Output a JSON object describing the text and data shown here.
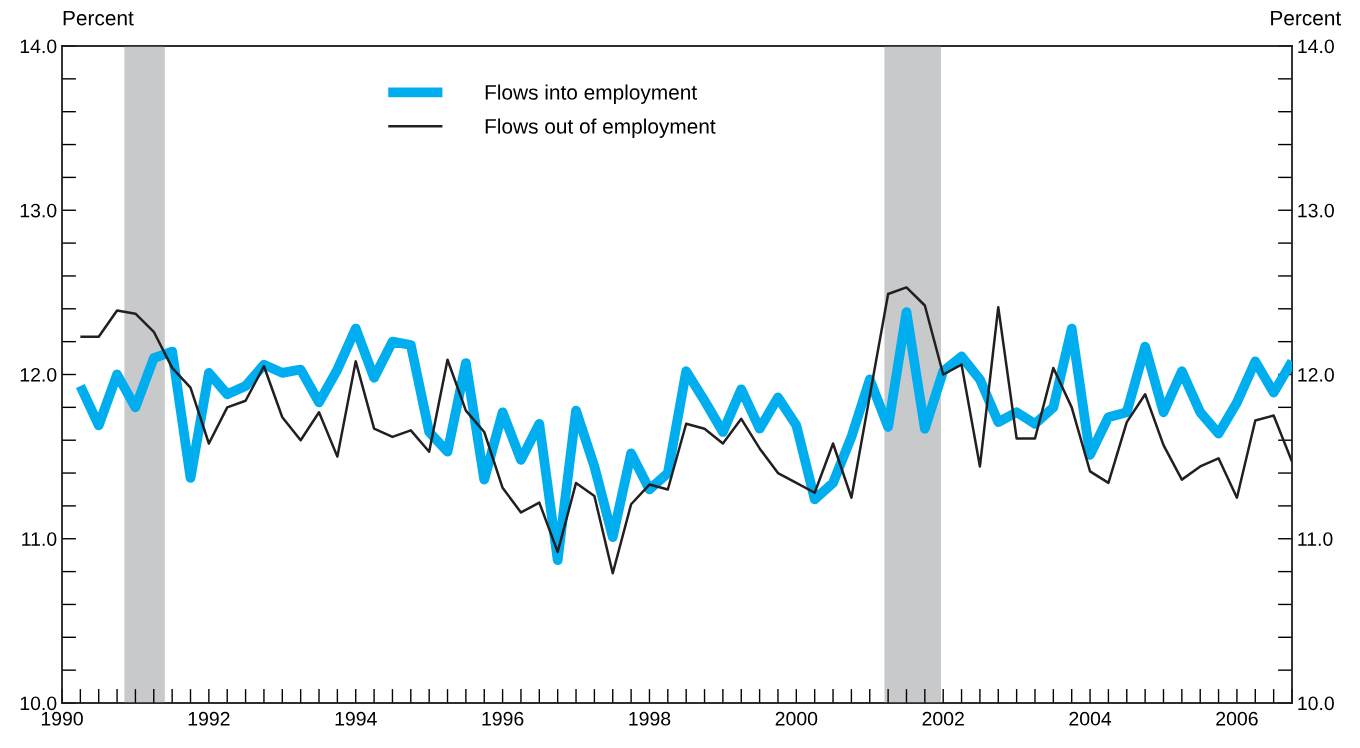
{
  "chart_data": {
    "type": "line",
    "ylabel": "Percent",
    "y2label": "Percent",
    "x": [
      1990.25,
      1990.5,
      1990.75,
      1991,
      1991.25,
      1991.5,
      1991.75,
      1992,
      1992.25,
      1992.5,
      1992.75,
      1993,
      1993.25,
      1993.5,
      1993.75,
      1994,
      1994.25,
      1994.5,
      1994.75,
      1995,
      1995.25,
      1995.5,
      1995.75,
      1996,
      1996.25,
      1996.5,
      1996.75,
      1997,
      1997.25,
      1997.5,
      1997.75,
      1998,
      1998.25,
      1998.5,
      1998.75,
      1999,
      1999.25,
      1999.5,
      1999.75,
      2000,
      2000.25,
      2000.5,
      2000.75,
      2001,
      2001.25,
      2001.5,
      2001.75,
      2002,
      2002.25,
      2002.5,
      2002.75,
      2003,
      2003.25,
      2003.5,
      2003.75,
      2004,
      2004.25,
      2004.5,
      2004.75,
      2005,
      2005.25,
      2005.5,
      2005.75,
      2006,
      2006.25,
      2006.5,
      2006.75
    ],
    "series": [
      {
        "name": "Flows into employment",
        "color": "#00aeef",
        "values": [
          11.93,
          11.69,
          12.0,
          11.8,
          12.1,
          12.14,
          11.37,
          12.01,
          11.88,
          11.93,
          12.06,
          12.01,
          12.03,
          11.83,
          12.03,
          12.28,
          11.98,
          12.2,
          12.18,
          11.65,
          11.53,
          12.07,
          11.36,
          11.77,
          11.48,
          11.7,
          10.87,
          11.78,
          11.44,
          11.01,
          11.52,
          11.3,
          11.4,
          12.02,
          11.84,
          11.65,
          11.91,
          11.67,
          11.86,
          11.69,
          11.24,
          11.34,
          11.62,
          11.97,
          11.68,
          12.38,
          11.67,
          12.02,
          12.11,
          11.97,
          11.71,
          11.77,
          11.7,
          11.8,
          12.28,
          11.51,
          11.74,
          11.77,
          12.17,
          11.77,
          12.02,
          11.77,
          11.64,
          11.83,
          12.08,
          11.89,
          12.08
        ]
      },
      {
        "name": "Flows out of employment",
        "color": "#231f20",
        "values": [
          12.23,
          12.23,
          12.39,
          12.37,
          12.26,
          12.04,
          11.92,
          11.58,
          11.8,
          11.84,
          12.05,
          11.74,
          11.6,
          11.77,
          11.5,
          12.08,
          11.67,
          11.62,
          11.66,
          11.53,
          12.09,
          11.78,
          11.65,
          11.31,
          11.16,
          11.22,
          10.92,
          11.34,
          11.26,
          10.79,
          11.21,
          11.33,
          11.3,
          11.7,
          11.67,
          11.58,
          11.73,
          11.55,
          11.4,
          11.34,
          11.28,
          11.58,
          11.25,
          11.87,
          12.49,
          12.53,
          12.42,
          12.0,
          12.06,
          11.44,
          12.41,
          11.61,
          11.61,
          12.04,
          11.8,
          11.41,
          11.34,
          11.71,
          11.88,
          11.57,
          11.36,
          11.44,
          11.49,
          11.25,
          11.72,
          11.75,
          11.47
        ]
      }
    ],
    "xlim": [
      1990,
      2006.75
    ],
    "xticks": [
      1990,
      1992,
      1994,
      1996,
      1998,
      2000,
      2002,
      2004,
      2006
    ],
    "ylim": [
      10,
      14
    ],
    "yticks": [
      {
        "value": 10,
        "label": "10.0"
      },
      {
        "value": 10.2,
        "label": null
      },
      {
        "value": 10.4,
        "label": null
      },
      {
        "value": 10.6,
        "label": null
      },
      {
        "value": 10.8,
        "label": null
      },
      {
        "value": 11,
        "label": "11.0"
      },
      {
        "value": 11.2,
        "label": null
      },
      {
        "value": 11.4,
        "label": null
      },
      {
        "value": 11.6,
        "label": null
      },
      {
        "value": 11.8,
        "label": null
      },
      {
        "value": 12,
        "label": "12.0"
      },
      {
        "value": 12.2,
        "label": null
      },
      {
        "value": 12.4,
        "label": null
      },
      {
        "value": 12.6,
        "label": null
      },
      {
        "value": 12.8,
        "label": null
      },
      {
        "value": 13,
        "label": "13.0"
      },
      {
        "value": 13.2,
        "label": null
      },
      {
        "value": 13.4,
        "label": null
      },
      {
        "value": 13.6,
        "label": null
      },
      {
        "value": 13.8,
        "label": null
      },
      {
        "value": 14,
        "label": "14.0"
      }
    ],
    "y2lim": [
      10,
      14
    ],
    "y2ticks": [
      {
        "value": 10,
        "label": "10.0"
      },
      {
        "value": 10.2,
        "label": null
      },
      {
        "value": 10.4,
        "label": null
      },
      {
        "value": 10.6,
        "label": null
      },
      {
        "value": 10.8,
        "label": null
      },
      {
        "value": 11,
        "label": "11.0"
      },
      {
        "value": 11.2,
        "label": null
      },
      {
        "value": 11.4,
        "label": null
      },
      {
        "value": 11.6,
        "label": null
      },
      {
        "value": 11.8,
        "label": null
      },
      {
        "value": 12,
        "label": "12.0"
      },
      {
        "value": 12.2,
        "label": null
      },
      {
        "value": 12.4,
        "label": null
      },
      {
        "value": 12.6,
        "label": null
      },
      {
        "value": 12.8,
        "label": null
      },
      {
        "value": 13,
        "label": "13.0"
      },
      {
        "value": 13.2,
        "label": null
      },
      {
        "value": 13.4,
        "label": null
      },
      {
        "value": 13.6,
        "label": null
      },
      {
        "value": 13.8,
        "label": null
      },
      {
        "value": 14,
        "label": "14.0"
      }
    ],
    "bands": [
      {
        "axis": "x",
        "from": 1990.85,
        "to": 1991.4,
        "color": "#c8c9cb"
      },
      {
        "axis": "x",
        "from": 2001.2,
        "to": 2001.97,
        "color": "#c8c9cb"
      }
    ],
    "grid": false,
    "legend": "top",
    "marker": "none",
    "line_style": "solid"
  }
}
